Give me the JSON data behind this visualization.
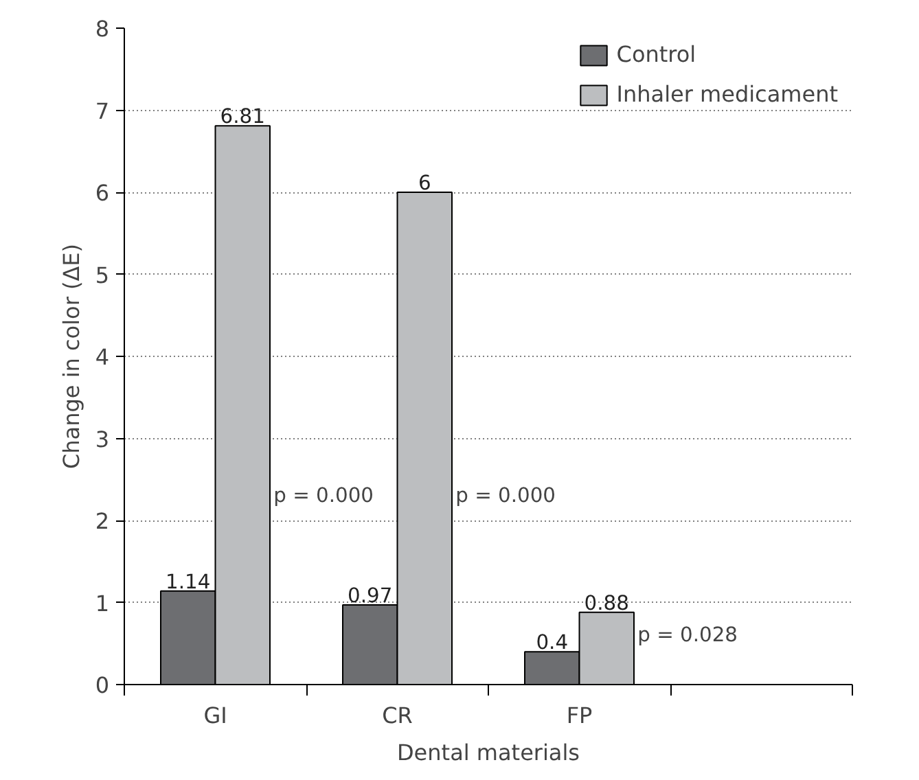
{
  "chart_data": {
    "type": "bar",
    "xlabel": "Dental materials",
    "ylabel": "Change in color (ΔE)",
    "categories": [
      "GI",
      "CR",
      "FP",
      null
    ],
    "series": [
      {
        "name": "Control",
        "color": "#6d6e71",
        "values": [
          1.14,
          0.97,
          0.4,
          null
        ]
      },
      {
        "name": "Inhaler medicament",
        "color": "#bcbec0",
        "values": [
          6.81,
          6,
          0.88,
          null
        ]
      }
    ],
    "ylim": [
      0,
      8
    ],
    "yticks": [
      0,
      1,
      2,
      3,
      4,
      5,
      6,
      7,
      8
    ],
    "grid": "y",
    "legend": "top right",
    "data_labels": true,
    "annotations": [
      {
        "text": "p = 0.000",
        "x": "GI",
        "y": 2.3
      },
      {
        "text": "p = 0.000",
        "x": "CR",
        "y": 2.3
      },
      {
        "text": "p = 0.028",
        "x": "FP",
        "y": 0.6
      }
    ]
  }
}
